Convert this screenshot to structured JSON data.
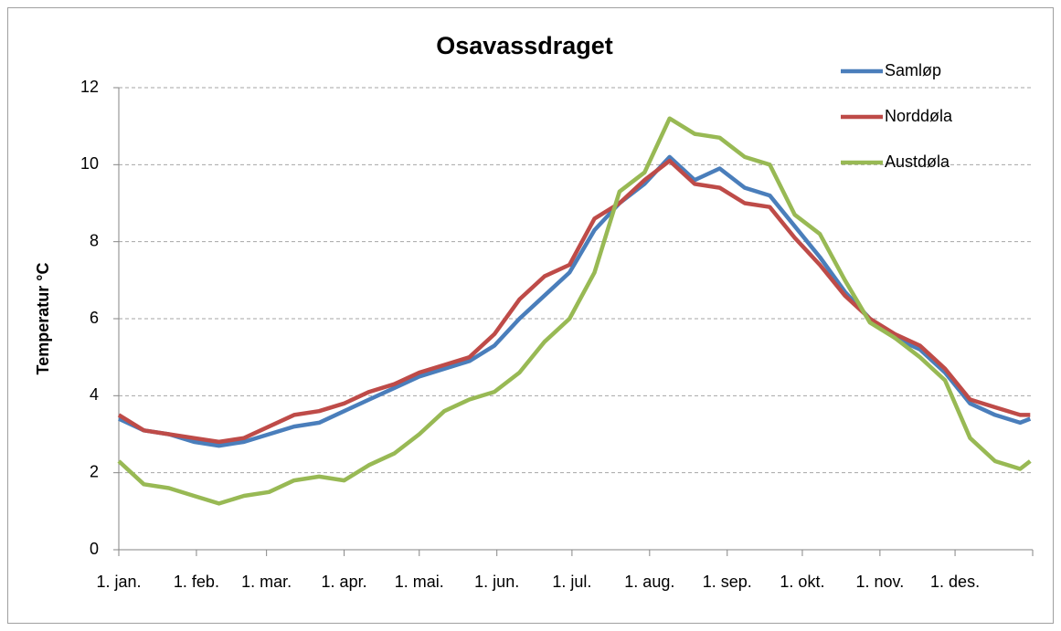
{
  "chart_data": {
    "type": "line",
    "title": "Osavassdraget",
    "y_label": "Temperatur °C",
    "x": [
      0,
      10,
      20,
      30,
      40,
      50,
      60,
      70,
      80,
      90,
      100,
      110,
      120,
      130,
      140,
      150,
      160,
      170,
      180,
      190,
      200,
      210,
      220,
      230,
      240,
      250,
      260,
      270,
      280,
      290,
      300,
      310,
      320,
      330,
      340,
      350,
      360,
      364
    ],
    "xlim": [
      0,
      365
    ],
    "xticks": [
      {
        "value": 0,
        "label": "1. jan."
      },
      {
        "value": 31,
        "label": "1. feb."
      },
      {
        "value": 59,
        "label": "1. mar."
      },
      {
        "value": 90,
        "label": "1. apr."
      },
      {
        "value": 120,
        "label": "1. mai."
      },
      {
        "value": 151,
        "label": "1. jun."
      },
      {
        "value": 181,
        "label": "1. jul."
      },
      {
        "value": 212,
        "label": "1. aug."
      },
      {
        "value": 243,
        "label": "1. sep."
      },
      {
        "value": 273,
        "label": "1. okt."
      },
      {
        "value": 304,
        "label": "1. nov."
      },
      {
        "value": 334,
        "label": "1. des."
      }
    ],
    "ylim": [
      0,
      12
    ],
    "yticks": [
      0,
      2,
      4,
      6,
      8,
      10,
      12
    ],
    "grid": true,
    "legend": "upper right",
    "series": [
      {
        "name": "Samløp",
        "color": "#4a7ebb",
        "values": [
          3.4,
          3.1,
          3.0,
          2.8,
          2.7,
          2.8,
          3.0,
          3.2,
          3.3,
          3.6,
          3.9,
          4.2,
          4.5,
          4.7,
          4.9,
          5.3,
          6.0,
          6.6,
          7.2,
          8.3,
          9.0,
          9.5,
          10.2,
          9.6,
          9.9,
          9.4,
          9.2,
          8.4,
          7.6,
          6.7,
          6.0,
          5.5,
          5.2,
          4.6,
          3.8,
          3.5,
          3.3,
          3.4
        ]
      },
      {
        "name": "Norddøla",
        "color": "#be4b48",
        "values": [
          3.5,
          3.1,
          3.0,
          2.9,
          2.8,
          2.9,
          3.2,
          3.5,
          3.6,
          3.8,
          4.1,
          4.3,
          4.6,
          4.8,
          5.0,
          5.6,
          6.5,
          7.1,
          7.4,
          8.6,
          9.0,
          9.6,
          10.1,
          9.5,
          9.4,
          9.0,
          8.9,
          8.1,
          7.4,
          6.6,
          6.0,
          5.6,
          5.3,
          4.7,
          3.9,
          3.7,
          3.5,
          3.5
        ]
      },
      {
        "name": "Austdøla",
        "color": "#98b954",
        "values": [
          2.3,
          1.7,
          1.6,
          1.4,
          1.2,
          1.4,
          1.5,
          1.8,
          1.9,
          1.8,
          2.2,
          2.5,
          3.0,
          3.6,
          3.9,
          4.1,
          4.6,
          5.4,
          6.0,
          7.2,
          9.3,
          9.8,
          11.2,
          10.8,
          10.7,
          10.2,
          10.0,
          8.7,
          8.2,
          7.0,
          5.9,
          5.5,
          5.0,
          4.4,
          2.9,
          2.3,
          2.1,
          2.3
        ]
      }
    ]
  }
}
